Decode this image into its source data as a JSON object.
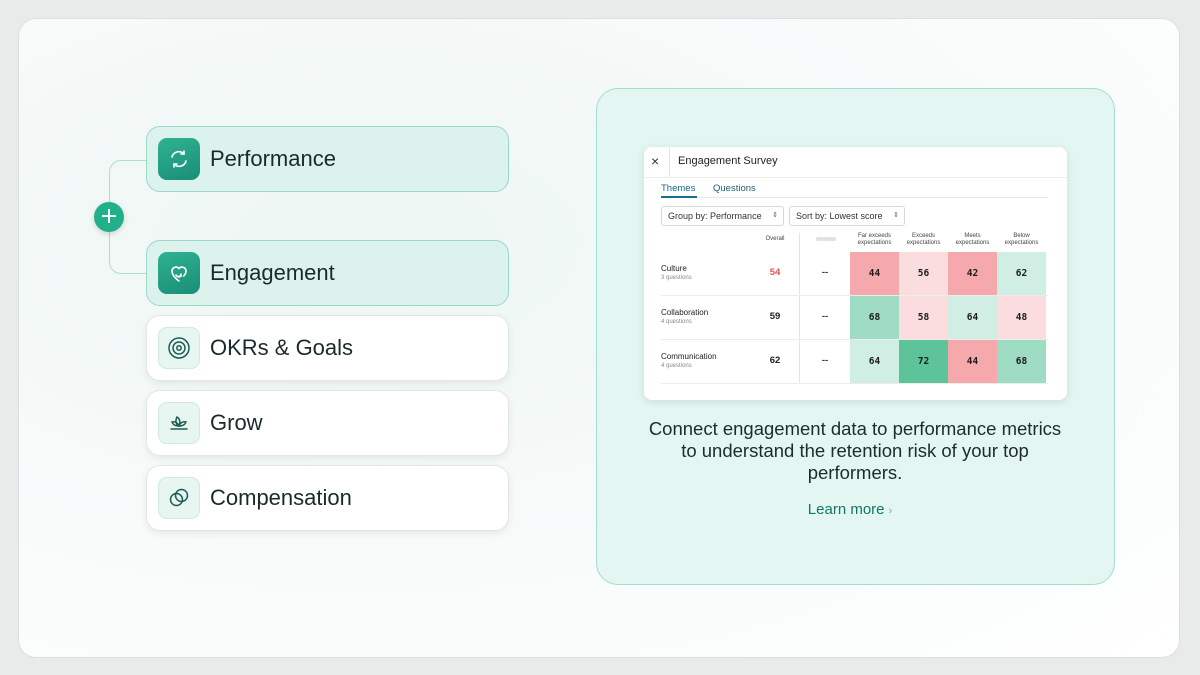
{
  "products": [
    {
      "label": "Performance",
      "icon": "cycle-arrows-icon",
      "active": true
    },
    {
      "label": "Engagement",
      "icon": "heart-refresh-icon",
      "active": true
    },
    {
      "label": "OKRs & Goals",
      "icon": "target-icon",
      "active": false
    },
    {
      "label": "Grow",
      "icon": "sprout-icon",
      "active": false
    },
    {
      "label": "Compensation",
      "icon": "coins-icon",
      "active": false
    }
  ],
  "connector": {
    "plus_label": "+"
  },
  "survey": {
    "close_glyph": "×",
    "title": "Engagement Survey",
    "tabs": [
      "Themes",
      "Questions"
    ],
    "group_by": {
      "label": "Group by:",
      "value": "Performance"
    },
    "sort_by": {
      "label": "Sort by:",
      "value": "Lowest score"
    },
    "columns": {
      "overall": "Overall",
      "ratings": [
        [
          "Far exceeds",
          "expectations"
        ],
        [
          "Exceeds",
          "expectations"
        ],
        [
          "Meets",
          "expectations"
        ],
        [
          "Below",
          "expectations"
        ]
      ]
    },
    "rows": [
      {
        "name": "Culture",
        "sub": "3 questions",
        "overall": "54",
        "dash": "--",
        "cells": [
          "44",
          "56",
          "42",
          "62"
        ]
      },
      {
        "name": "Collaboration",
        "sub": "4 questions",
        "overall": "59",
        "dash": "--",
        "cells": [
          "68",
          "58",
          "64",
          "48"
        ]
      },
      {
        "name": "Communication",
        "sub": "4 questions",
        "overall": "62",
        "dash": "--",
        "cells": [
          "64",
          "72",
          "44",
          "68"
        ]
      }
    ],
    "colors": {
      "low": "#f5a9ad",
      "mid_low": "#fbdde0",
      "mid": "#d0eee3",
      "high": "#9edcc4",
      "very_high": "#5cc39b",
      "overall_low": "#e5535c"
    }
  },
  "description": "Connect engagement data to performance metrics to understand the retention risk of your top performers.",
  "learn_more": {
    "label": "Learn more",
    "chevron": "›"
  }
}
